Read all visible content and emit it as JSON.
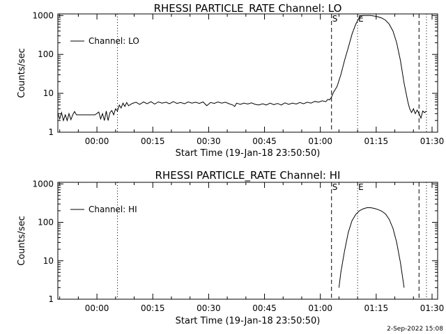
{
  "timestamp": "2-Sep-2022 15:08",
  "chart_data": [
    {
      "type": "line",
      "title": "RHESSI PARTICLE_RATE Channel: LO",
      "xlabel": "Start Time (19-Jan-18 23:50:50)",
      "ylabel": "Counts/sec",
      "y_scale": "log",
      "ylim": [
        1,
        1100
      ],
      "xlim_minutes_from_start": [
        0,
        102
      ],
      "x_tick_labels": [
        "00:00",
        "00:15",
        "00:30",
        "00:45",
        "01:00",
        "01:15",
        "01:30"
      ],
      "y_tick_labels": [
        "1",
        "10",
        "100",
        "1000"
      ],
      "legend": {
        "placement": "top-left",
        "entries": [
          "Channel: LO"
        ]
      },
      "markers": [
        {
          "kind": "dotted",
          "x": 16,
          "label": ""
        },
        {
          "kind": "dashed",
          "x": 73.5,
          "label": "S"
        },
        {
          "kind": "dotted",
          "x": 80.5,
          "label": "E"
        },
        {
          "kind": "dashed",
          "x": 97,
          "label": ""
        },
        {
          "kind": "dotted",
          "x": 99,
          "label": ""
        }
      ],
      "series": [
        {
          "name": "Channel: LO",
          "points": [
            [
              0,
              3.0
            ],
            [
              0.5,
              2.2
            ],
            [
              1,
              3.2
            ],
            [
              1.5,
              2.0
            ],
            [
              2,
              2.8
            ],
            [
              2.5,
              2.0
            ],
            [
              3,
              3.0
            ],
            [
              3.5,
              2.1
            ],
            [
              4,
              2.8
            ],
            [
              4.5,
              3.4
            ],
            [
              5,
              2.8
            ],
            [
              6,
              2.8
            ],
            [
              7,
              2.8
            ],
            [
              8,
              2.8
            ],
            [
              9,
              2.8
            ],
            [
              10,
              2.8
            ],
            [
              11,
              3.3
            ],
            [
              11.5,
              2.2
            ],
            [
              12,
              3.0
            ],
            [
              12.5,
              2.0
            ],
            [
              13,
              3.5
            ],
            [
              13.5,
              2.0
            ],
            [
              14,
              3.2
            ],
            [
              14.5,
              3.6
            ],
            [
              15,
              2.8
            ],
            [
              15.5,
              4.0
            ],
            [
              16,
              3.5
            ],
            [
              16.5,
              5.0
            ],
            [
              17,
              4.2
            ],
            [
              17.5,
              5.6
            ],
            [
              18,
              4.6
            ],
            [
              18.5,
              5.8
            ],
            [
              19,
              4.8
            ],
            [
              20,
              5.5
            ],
            [
              21,
              5.9
            ],
            [
              22,
              5.2
            ],
            [
              23,
              6.0
            ],
            [
              24,
              5.4
            ],
            [
              25,
              6.1
            ],
            [
              26,
              5.3
            ],
            [
              27,
              6.0
            ],
            [
              28,
              5.6
            ],
            [
              29,
              5.9
            ],
            [
              30,
              5.4
            ],
            [
              31,
              6.1
            ],
            [
              32,
              5.5
            ],
            [
              33,
              5.8
            ],
            [
              34,
              5.4
            ],
            [
              35,
              6.0
            ],
            [
              36,
              5.6
            ],
            [
              37,
              5.9
            ],
            [
              38,
              5.5
            ],
            [
              39,
              6.0
            ],
            [
              40,
              4.8
            ],
            [
              41,
              5.8
            ],
            [
              42,
              5.5
            ],
            [
              43,
              6.0
            ],
            [
              44,
              5.6
            ],
            [
              45,
              5.9
            ],
            [
              46,
              5.4
            ],
            [
              47,
              5.0
            ],
            [
              47.5,
              4.6
            ],
            [
              48,
              5.6
            ],
            [
              49,
              5.2
            ],
            [
              50,
              5.6
            ],
            [
              51,
              5.3
            ],
            [
              52,
              5.7
            ],
            [
              53,
              5.2
            ],
            [
              54,
              5.0
            ],
            [
              55,
              5.4
            ],
            [
              56,
              5.0
            ],
            [
              57,
              5.6
            ],
            [
              58,
              5.1
            ],
            [
              59,
              5.5
            ],
            [
              60,
              5.0
            ],
            [
              61,
              5.7
            ],
            [
              62,
              5.2
            ],
            [
              63,
              5.6
            ],
            [
              64,
              5.3
            ],
            [
              65,
              5.8
            ],
            [
              66,
              5.4
            ],
            [
              67,
              5.9
            ],
            [
              68,
              5.6
            ],
            [
              69,
              6.2
            ],
            [
              70,
              5.9
            ],
            [
              71,
              6.4
            ],
            [
              72,
              6.1
            ],
            [
              72.5,
              7.0
            ],
            [
              73,
              6.8
            ],
            [
              73.5,
              8.0
            ],
            [
              74,
              10.5
            ],
            [
              75,
              15
            ],
            [
              76,
              30
            ],
            [
              77,
              70
            ],
            [
              78,
              150
            ],
            [
              79,
              330
            ],
            [
              80,
              600
            ],
            [
              81,
              900
            ],
            [
              82,
              1000
            ],
            [
              83,
              1000
            ],
            [
              84,
              1000
            ],
            [
              85,
              970
            ],
            [
              86,
              930
            ],
            [
              87,
              860
            ],
            [
              88,
              760
            ],
            [
              89,
              600
            ],
            [
              90,
              400
            ],
            [
              91,
              200
            ],
            [
              92,
              70
            ],
            [
              93,
              18
            ],
            [
              94,
              6
            ],
            [
              94.5,
              4.0
            ],
            [
              95,
              3.2
            ],
            [
              95.5,
              4.0
            ],
            [
              96,
              3.0
            ],
            [
              96.5,
              3.7
            ],
            [
              97,
              3.0
            ],
            [
              97.5,
              2.3
            ],
            [
              98,
              3.5
            ],
            [
              98.5,
              3.2
            ],
            [
              99,
              3.5
            ]
          ]
        }
      ]
    },
    {
      "type": "line",
      "title": "RHESSI PARTICLE_RATE Channel: HI",
      "xlabel": "Start Time (19-Jan-18 23:50:50)",
      "ylabel": "Counts/sec",
      "y_scale": "log",
      "ylim": [
        1,
        1100
      ],
      "xlim_minutes_from_start": [
        0,
        102
      ],
      "x_tick_labels": [
        "00:00",
        "00:15",
        "00:30",
        "00:45",
        "01:00",
        "01:15",
        "01:30"
      ],
      "y_tick_labels": [
        "1",
        "10",
        "100",
        "1000"
      ],
      "legend": {
        "placement": "top-left",
        "entries": [
          "Channel: HI"
        ]
      },
      "markers": [
        {
          "kind": "dotted",
          "x": 16,
          "label": ""
        },
        {
          "kind": "dashed",
          "x": 73.5,
          "label": "S"
        },
        {
          "kind": "dotted",
          "x": 80.5,
          "label": "E"
        },
        {
          "kind": "dashed",
          "x": 97,
          "label": ""
        },
        {
          "kind": "dotted",
          "x": 99,
          "label": ""
        }
      ],
      "series": [
        {
          "name": "Channel: HI",
          "points": [
            [
              75.5,
              2.0
            ],
            [
              76,
              5
            ],
            [
              77,
              18
            ],
            [
              78,
              55
            ],
            [
              79,
              110
            ],
            [
              80,
              160
            ],
            [
              81,
              200
            ],
            [
              82,
              225
            ],
            [
              83,
              240
            ],
            [
              84,
              240
            ],
            [
              85,
              230
            ],
            [
              86,
              215
            ],
            [
              87,
              195
            ],
            [
              88,
              165
            ],
            [
              89,
              120
            ],
            [
              90,
              70
            ],
            [
              91,
              30
            ],
            [
              92,
              9
            ],
            [
              93,
              2.0
            ]
          ]
        }
      ]
    }
  ]
}
